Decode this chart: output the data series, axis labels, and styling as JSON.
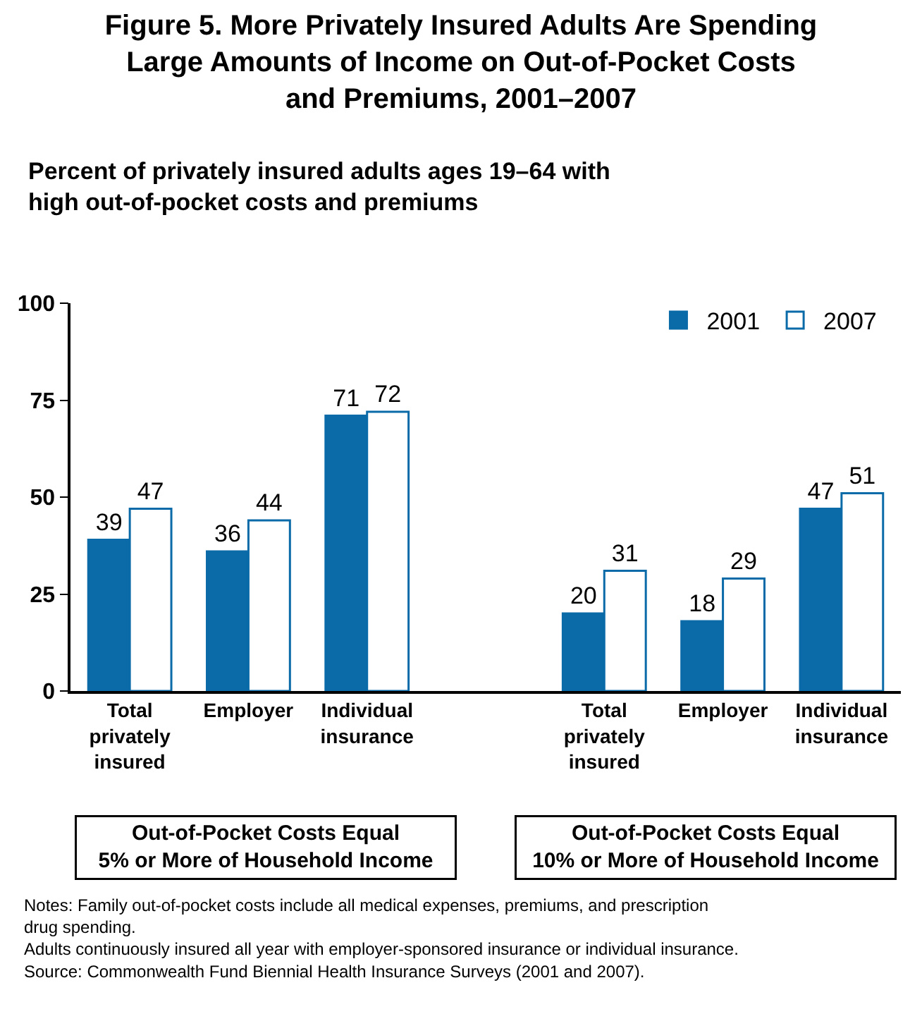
{
  "chart_data": {
    "type": "bar",
    "title": "Figure 5. More Privately Insured Adults Are Spending\nLarge Amounts of Income on Out-of-Pocket Costs\nand Premiums, 2001–2007",
    "subtitle": "Percent of privately insured adults ages 19–64 with\nhigh out-of-pocket costs and premiums",
    "categories": [
      "Total\nprivately\ninsured",
      "Employer",
      "Individual\ninsurance",
      null,
      "Total\nprivately\ninsured",
      "Employer",
      "Individual\ninsurance"
    ],
    "series": [
      {
        "name": "2001",
        "color": "#0b6aa8",
        "values": [
          39,
          36,
          71,
          null,
          20,
          18,
          47
        ]
      },
      {
        "name": "2007",
        "color": "#ffffff",
        "values": [
          47,
          44,
          72,
          null,
          31,
          29,
          51
        ]
      }
    ],
    "ylim": [
      0,
      100
    ],
    "yticks": [
      0,
      25,
      50,
      75,
      100
    ],
    "legend": "top right",
    "data_labels": true,
    "annotations": [
      "Out-of-Pocket Costs Equal\n5% or More of Household Income",
      "Out-of-Pocket Costs Equal\n10% or More of Household Income",
      "Notes: Family out-of-pocket costs include all medical expenses, premiums, and prescription\ndrug spending.\nAdults continuously insured all year with employer-sponsored insurance or individual insurance.\nSource: Commonwealth Fund Biennial Health Insurance Surveys (2001 and 2007)."
    ]
  }
}
